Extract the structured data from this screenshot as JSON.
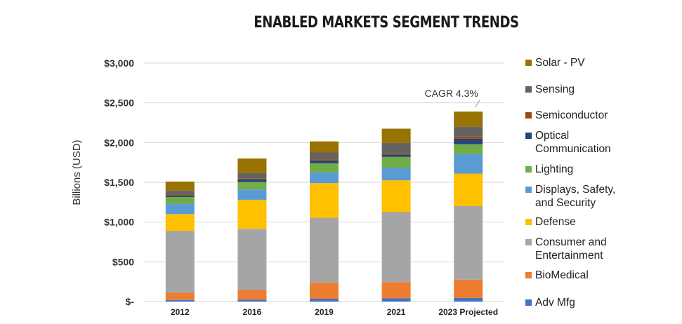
{
  "chart_data": {
    "type": "bar",
    "stacked": true,
    "title": "ENABLED MARKETS SEGMENT TRENDS",
    "ylabel": "Billions (USD)",
    "ylim": [
      0,
      3000
    ],
    "yticks": [
      0,
      500,
      1000,
      1500,
      2000,
      2500,
      3000
    ],
    "ytick_labels": [
      "$-",
      "$500",
      "$1,000",
      "$1,500",
      "$2,000",
      "$2,500",
      "$3,000"
    ],
    "grid": true,
    "legend_position": "right",
    "categories": [
      "2012",
      "2016",
      "2019",
      "2021",
      "2023 Projected"
    ],
    "series": [
      {
        "name": "Adv Mfg",
        "color": "#4472c4",
        "values": [
          20,
          25,
          35,
          40,
          45
        ]
      },
      {
        "name": "BioMedical",
        "color": "#ed7d31",
        "values": [
          90,
          120,
          205,
          205,
          230
        ]
      },
      {
        "name": "Consumer and\nEntertainment",
        "color": "#a5a5a5",
        "values": [
          780,
          770,
          815,
          880,
          925
        ]
      },
      {
        "name": "Defense",
        "color": "#ffc000",
        "values": [
          210,
          365,
          435,
          400,
          410
        ]
      },
      {
        "name": "Displays, Safety,\nand Security",
        "color": "#5b9bd5",
        "values": [
          130,
          130,
          135,
          160,
          245
        ]
      },
      {
        "name": "Lighting",
        "color": "#70ad47",
        "values": [
          85,
          95,
          115,
          135,
          125
        ]
      },
      {
        "name": "Optical\nCommunication",
        "color": "#264478",
        "values": [
          20,
          30,
          35,
          30,
          70
        ]
      },
      {
        "name": "Semiconductor",
        "color": "#9e480e",
        "values": [
          10,
          10,
          15,
          15,
          25
        ]
      },
      {
        "name": "Sensing",
        "color": "#636363",
        "values": [
          50,
          70,
          85,
          130,
          125
        ]
      },
      {
        "name": "Solar - PV",
        "color": "#997300",
        "values": [
          115,
          185,
          140,
          180,
          190
        ]
      }
    ],
    "annotations": [
      {
        "text": "CAGR 4.3%",
        "category": "2023 Projected"
      }
    ]
  }
}
